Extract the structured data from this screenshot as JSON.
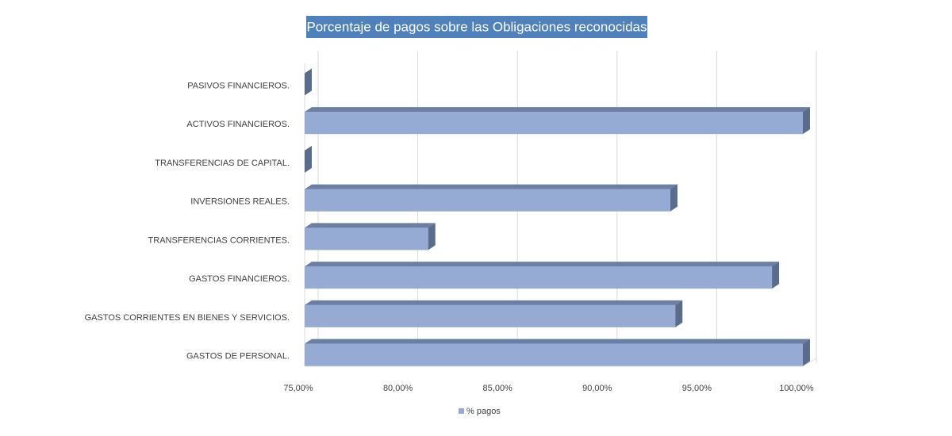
{
  "chart_data": {
    "type": "bar3d",
    "title": "Porcentaje de pagos sobre las Obligaciones reconocidas",
    "categories": [
      "PASIVOS FINANCIEROS.",
      "ACTIVOS FINANCIEROS.",
      "TRANSFERENCIAS DE CAPITAL.",
      "INVERSIONES REALES.",
      "TRANSFERENCIAS CORRIENTES.",
      "GASTOS FINANCIEROS.",
      "GASTOS CORRIENTES EN BIENES Y SERVICIOS.",
      "GASTOS DE PERSONAL."
    ],
    "series": [
      {
        "name": "% pagos",
        "color": "#95abd4",
        "values": [
          0,
          100,
          0,
          93.35,
          81.2,
          98.45,
          93.6,
          100
        ]
      }
    ],
    "xlim": [
      75,
      100
    ],
    "xticks": [
      {
        "value": 75,
        "label": "75,00%"
      },
      {
        "value": 80,
        "label": "80,00%"
      },
      {
        "value": 85,
        "label": "85,00%"
      },
      {
        "value": 90,
        "label": "90,00%"
      },
      {
        "value": 95,
        "label": "95,00%"
      },
      {
        "value": 100,
        "label": "100,00%"
      }
    ],
    "grid": true,
    "legend": "bottom"
  }
}
